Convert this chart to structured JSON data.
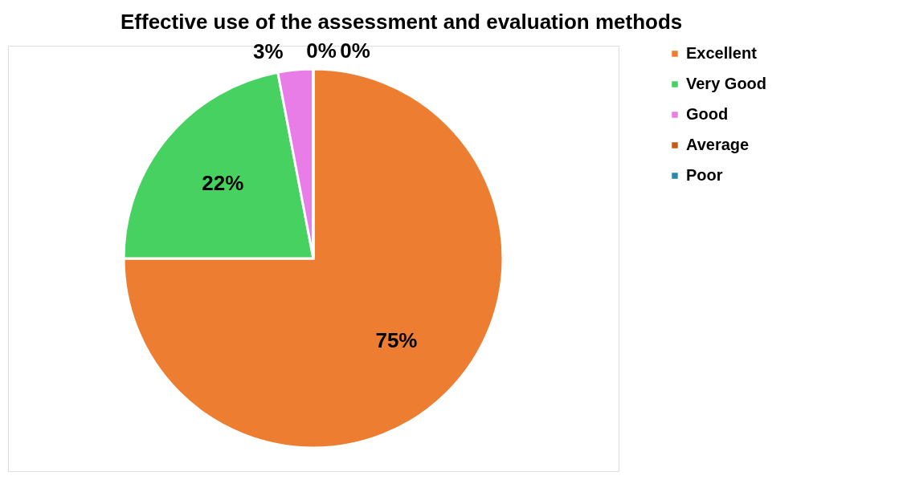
{
  "chart_data": {
    "type": "pie",
    "title": "Effective use of the assessment and evaluation methods",
    "categories": [
      "Excellent",
      "Very Good",
      "Good",
      "Average",
      "Poor"
    ],
    "values": [
      75,
      22,
      3,
      0,
      0
    ],
    "colors": [
      "#ed7d31",
      "#46d160",
      "#e87de8",
      "#c55a11",
      "#2e86ab"
    ],
    "value_labels": [
      "75%",
      "22%",
      "3%",
      "0%",
      "0%"
    ],
    "legend": "right"
  }
}
